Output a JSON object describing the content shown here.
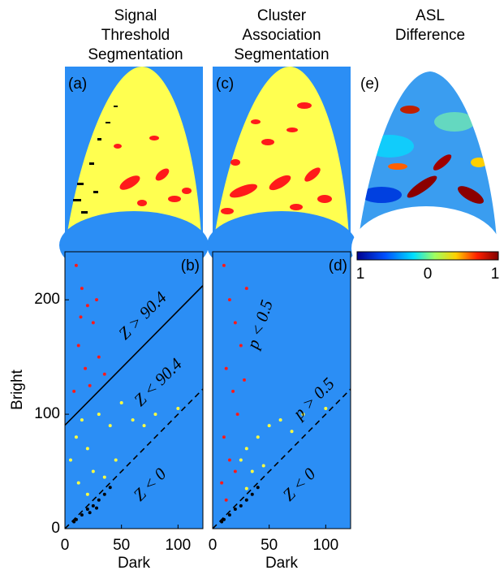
{
  "figure": {
    "column_titles": [
      [
        "Signal",
        "Threshold",
        "Segmentation"
      ],
      [
        "Cluster",
        "Association",
        "Segmentation"
      ],
      [
        "ASL",
        "Difference"
      ]
    ],
    "image_panels": [
      "(a)",
      "(c)",
      "(e)"
    ],
    "colorbar": {
      "labels": [
        "1",
        "0",
        "1"
      ]
    }
  },
  "chart_data": [
    {
      "type": "scatter",
      "panel_label": "(b)",
      "x_label": "Dark",
      "y_label": "Bright",
      "background": "#2b8ef5",
      "xlim": [
        0,
        122
      ],
      "ylim": [
        0,
        242
      ],
      "xticks": [
        0,
        50,
        100
      ],
      "yticks": [
        0,
        100,
        200
      ],
      "boundaries": [
        {
          "slope": 1,
          "intercept": 90.4,
          "dashed": false
        },
        {
          "slope": 1,
          "intercept": 0,
          "dashed": true
        }
      ],
      "annotations": [
        "Z > 90.4",
        "Z < 90.4",
        "Z < 0"
      ],
      "series": [
        {
          "color": "#ff1a1a",
          "x": [
            10,
            15,
            20,
            25,
            12,
            30,
            18,
            8,
            22,
            35,
            28,
            14
          ],
          "values": [
            230,
            210,
            195,
            180,
            160,
            150,
            140,
            120,
            125,
            135,
            200,
            185
          ]
        },
        {
          "color": "#ffff40",
          "x": [
            5,
            10,
            15,
            20,
            25,
            30,
            40,
            50,
            60,
            80,
            45,
            35,
            12,
            20,
            70,
            100
          ],
          "values": [
            60,
            80,
            95,
            70,
            50,
            100,
            90,
            110,
            95,
            100,
            60,
            45,
            40,
            30,
            90,
            105
          ]
        },
        {
          "color": "#000000",
          "x": [
            10,
            15,
            20,
            25,
            30,
            35,
            40,
            22,
            8,
            28
          ],
          "values": [
            8,
            12,
            17,
            20,
            25,
            30,
            36,
            14,
            6,
            18
          ]
        }
      ]
    },
    {
      "type": "scatter",
      "panel_label": "(d)",
      "x_label": "Dark",
      "background": "#2b8ef5",
      "xlim": [
        0,
        122
      ],
      "ylim": [
        0,
        242
      ],
      "xticks": [
        0,
        50,
        100
      ],
      "boundaries": [
        {
          "slope": 1,
          "intercept": 0,
          "dashed": true
        }
      ],
      "annotations": [
        "p < 0.5",
        "p > 0.5",
        "Z < 0"
      ],
      "series": [
        {
          "color": "#ff1a1a",
          "x": [
            10,
            15,
            20,
            25,
            12,
            18,
            22,
            10,
            15,
            8,
            30,
            28,
            20,
            12
          ],
          "values": [
            230,
            200,
            180,
            160,
            140,
            120,
            100,
            80,
            60,
            40,
            210,
            130,
            50,
            25
          ]
        },
        {
          "color": "#ffff40",
          "x": [
            25,
            30,
            40,
            50,
            60,
            80,
            100,
            35,
            30,
            45,
            70
          ],
          "values": [
            60,
            70,
            80,
            90,
            95,
            100,
            105,
            50,
            35,
            55,
            85
          ]
        },
        {
          "color": "#000000",
          "x": [
            10,
            15,
            20,
            25,
            30,
            35,
            40,
            8
          ],
          "values": [
            8,
            12,
            17,
            20,
            25,
            30,
            36,
            6
          ]
        }
      ]
    }
  ]
}
